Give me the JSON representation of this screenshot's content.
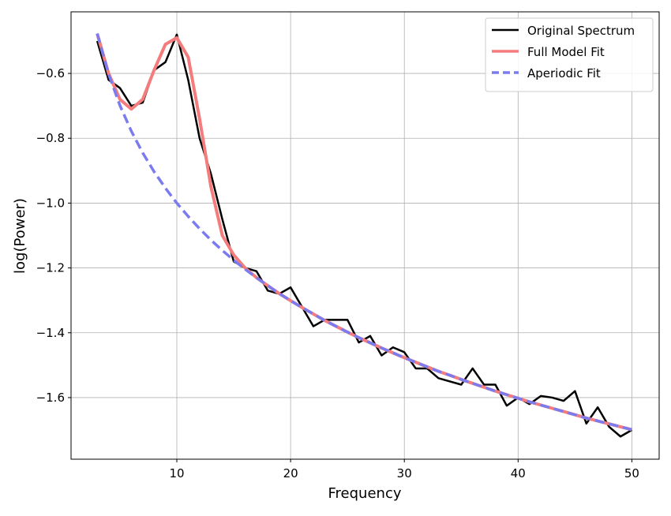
{
  "chart_data": {
    "type": "line",
    "x_label": "Frequency",
    "y_label": "log(Power)",
    "x": [
      3,
      4,
      5,
      6,
      7,
      8,
      9,
      10,
      11,
      12,
      13,
      14,
      15,
      16,
      17,
      18,
      19,
      20,
      21,
      22,
      23,
      24,
      25,
      26,
      27,
      28,
      29,
      30,
      31,
      32,
      33,
      34,
      35,
      36,
      37,
      38,
      39,
      40,
      41,
      42,
      43,
      44,
      45,
      46,
      47,
      48,
      49,
      50
    ],
    "series": [
      {
        "name": "Original Spectrum",
        "color": "#000000",
        "linestyle": "solid",
        "values": [
          -0.5,
          -0.62,
          -0.645,
          -0.7,
          -0.69,
          -0.59,
          -0.565,
          -0.48,
          -0.62,
          -0.8,
          -0.91,
          -1.05,
          -1.18,
          -1.2,
          -1.21,
          -1.27,
          -1.28,
          -1.26,
          -1.32,
          -1.38,
          -1.36,
          -1.36,
          -1.36,
          -1.43,
          -1.41,
          -1.47,
          -1.445,
          -1.46,
          -1.51,
          -1.51,
          -1.54,
          -1.55,
          -1.56,
          -1.51,
          -1.56,
          -1.56,
          -1.625,
          -1.6,
          -1.62,
          -1.595,
          -1.6,
          -1.61,
          -1.58,
          -1.68,
          -1.63,
          -1.69,
          -1.72,
          -1.7
        ]
      },
      {
        "name": "Full Model Fit",
        "color": "#f47c7c",
        "linestyle": "solid",
        "values": [
          -0.477,
          -0.6,
          -0.68,
          -0.71,
          -0.68,
          -0.59,
          -0.51,
          -0.49,
          -0.55,
          -0.74,
          -0.95,
          -1.1,
          -1.16,
          -1.2,
          -1.23,
          -1.255,
          -1.279,
          -1.301,
          -1.322,
          -1.342,
          -1.362,
          -1.38,
          -1.398,
          -1.415,
          -1.431,
          -1.447,
          -1.462,
          -1.477,
          -1.491,
          -1.505,
          -1.519,
          -1.531,
          -1.544,
          -1.556,
          -1.568,
          -1.58,
          -1.591,
          -1.602,
          -1.613,
          -1.623,
          -1.633,
          -1.643,
          -1.653,
          -1.663,
          -1.672,
          -1.681,
          -1.69,
          -1.699
        ]
      },
      {
        "name": "Aperiodic Fit",
        "color": "#7b7bf0",
        "linestyle": "dashed",
        "values": [
          -0.477,
          -0.602,
          -0.699,
          -0.778,
          -0.845,
          -0.903,
          -0.954,
          -1.0,
          -1.041,
          -1.079,
          -1.114,
          -1.146,
          -1.176,
          -1.204,
          -1.23,
          -1.255,
          -1.279,
          -1.301,
          -1.322,
          -1.342,
          -1.362,
          -1.38,
          -1.398,
          -1.415,
          -1.431,
          -1.447,
          -1.462,
          -1.477,
          -1.491,
          -1.505,
          -1.519,
          -1.531,
          -1.544,
          -1.556,
          -1.568,
          -1.58,
          -1.591,
          -1.602,
          -1.613,
          -1.623,
          -1.633,
          -1.643,
          -1.653,
          -1.663,
          -1.672,
          -1.681,
          -1.69,
          -1.699
        ]
      }
    ],
    "xlim": [
      0.7,
      52.4
    ],
    "ylim": [
      -1.79,
      -0.41
    ],
    "xticks": [
      10,
      20,
      30,
      40,
      50
    ],
    "yticks": [
      {
        "value": -0.6,
        "label": "−0.6"
      },
      {
        "value": -0.8,
        "label": "−0.8"
      },
      {
        "value": -1.0,
        "label": "−1.0"
      },
      {
        "value": -1.2,
        "label": "−1.2"
      },
      {
        "value": -1.4,
        "label": "−1.4"
      },
      {
        "value": -1.6,
        "label": "−1.6"
      }
    ],
    "grid": true,
    "legend": "upper right"
  }
}
